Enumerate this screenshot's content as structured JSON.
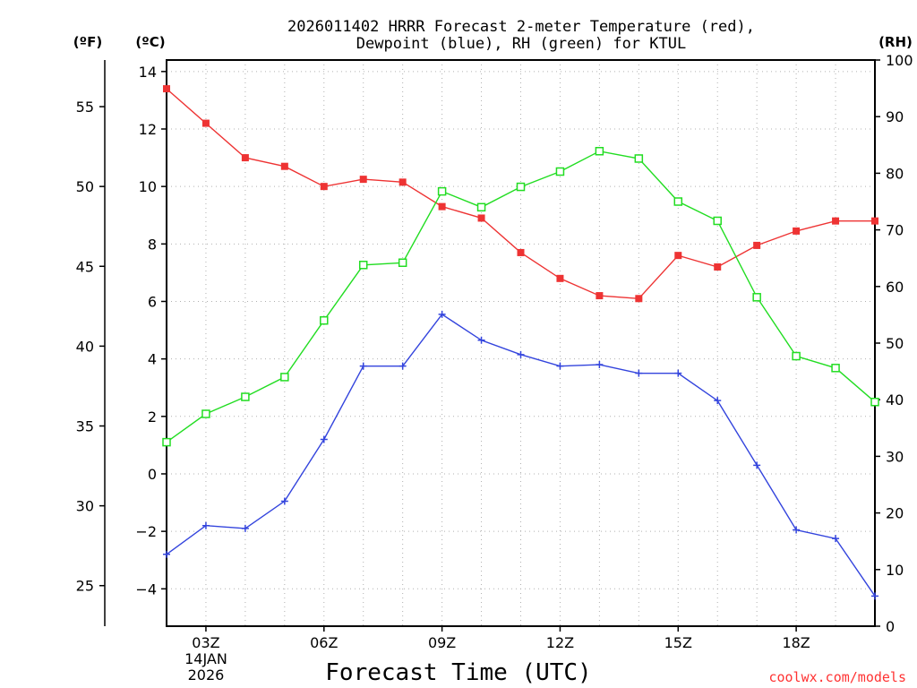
{
  "chart_data": {
    "type": "line",
    "title_lines": [
      "2026011402 HRRR Forecast 2-meter Temperature (red),",
      "Dewpoint (blue), RH (green) for KTUL"
    ],
    "xlabel": "Forecast Time (UTC)",
    "credit": "coolwx.com/models",
    "units": {
      "fahrenheit": "(ºF)",
      "celsius": "(ºC)",
      "rh": "(RH)"
    },
    "x_hours": [
      2,
      3,
      4,
      5,
      6,
      7,
      8,
      9,
      10,
      11,
      12,
      13,
      14,
      15,
      16,
      17,
      18,
      19,
      20
    ],
    "x_range": [
      2,
      20
    ],
    "x_ticks": [
      {
        "hour": 3,
        "label": "03Z",
        "sub1": "14JAN",
        "sub2": "2026"
      },
      {
        "hour": 6,
        "label": "06Z"
      },
      {
        "hour": 9,
        "label": "09Z"
      },
      {
        "hour": 12,
        "label": "12Z"
      },
      {
        "hour": 15,
        "label": "15Z"
      },
      {
        "hour": 18,
        "label": "18Z"
      }
    ],
    "celsius_axis": {
      "range": [
        -5.3,
        14.4
      ],
      "ticks": [
        -4,
        -2,
        0,
        2,
        4,
        6,
        8,
        10,
        12,
        14
      ],
      "labels": [
        "−4",
        "−2",
        "0",
        "2",
        "4",
        "6",
        "8",
        "10",
        "12",
        "14"
      ]
    },
    "fahrenheit_axis": {
      "ticks": [
        25,
        30,
        35,
        40,
        45,
        50,
        55
      ],
      "labels": [
        "25",
        "30",
        "35",
        "40",
        "45",
        "50",
        "55"
      ]
    },
    "rh_axis": {
      "range": [
        0,
        100
      ],
      "ticks": [
        0,
        10,
        20,
        30,
        40,
        50,
        60,
        70,
        80,
        90,
        100
      ],
      "labels": [
        "0",
        "10",
        "20",
        "30",
        "40",
        "50",
        "60",
        "70",
        "80",
        "90",
        "100"
      ]
    },
    "series": [
      {
        "name": "Temperature",
        "axis": "celsius",
        "color": "#ee3333",
        "marker": "filled-square",
        "values": [
          13.4,
          12.2,
          11.0,
          10.7,
          10.0,
          10.25,
          10.15,
          9.3,
          8.9,
          7.7,
          6.8,
          6.2,
          6.1,
          7.6,
          7.2,
          7.95,
          8.45,
          8.8,
          8.8
        ]
      },
      {
        "name": "Dewpoint",
        "axis": "celsius",
        "color": "#3344dd",
        "marker": "plus",
        "values": [
          -2.8,
          -1.8,
          -1.9,
          -0.95,
          1.2,
          3.75,
          3.75,
          5.55,
          4.65,
          4.15,
          3.75,
          3.8,
          3.5,
          3.5,
          2.55,
          0.3,
          -1.95,
          -2.25,
          -4.25
        ]
      },
      {
        "name": "RH",
        "axis": "rh",
        "color": "#22dd22",
        "marker": "open-square",
        "values": [
          32.5,
          37.5,
          40.5,
          44.0,
          54.0,
          63.8,
          64.2,
          76.8,
          74.0,
          77.6,
          80.3,
          83.9,
          82.6,
          75.0,
          71.6,
          58.1,
          47.7,
          45.6,
          39.6
        ]
      }
    ]
  }
}
